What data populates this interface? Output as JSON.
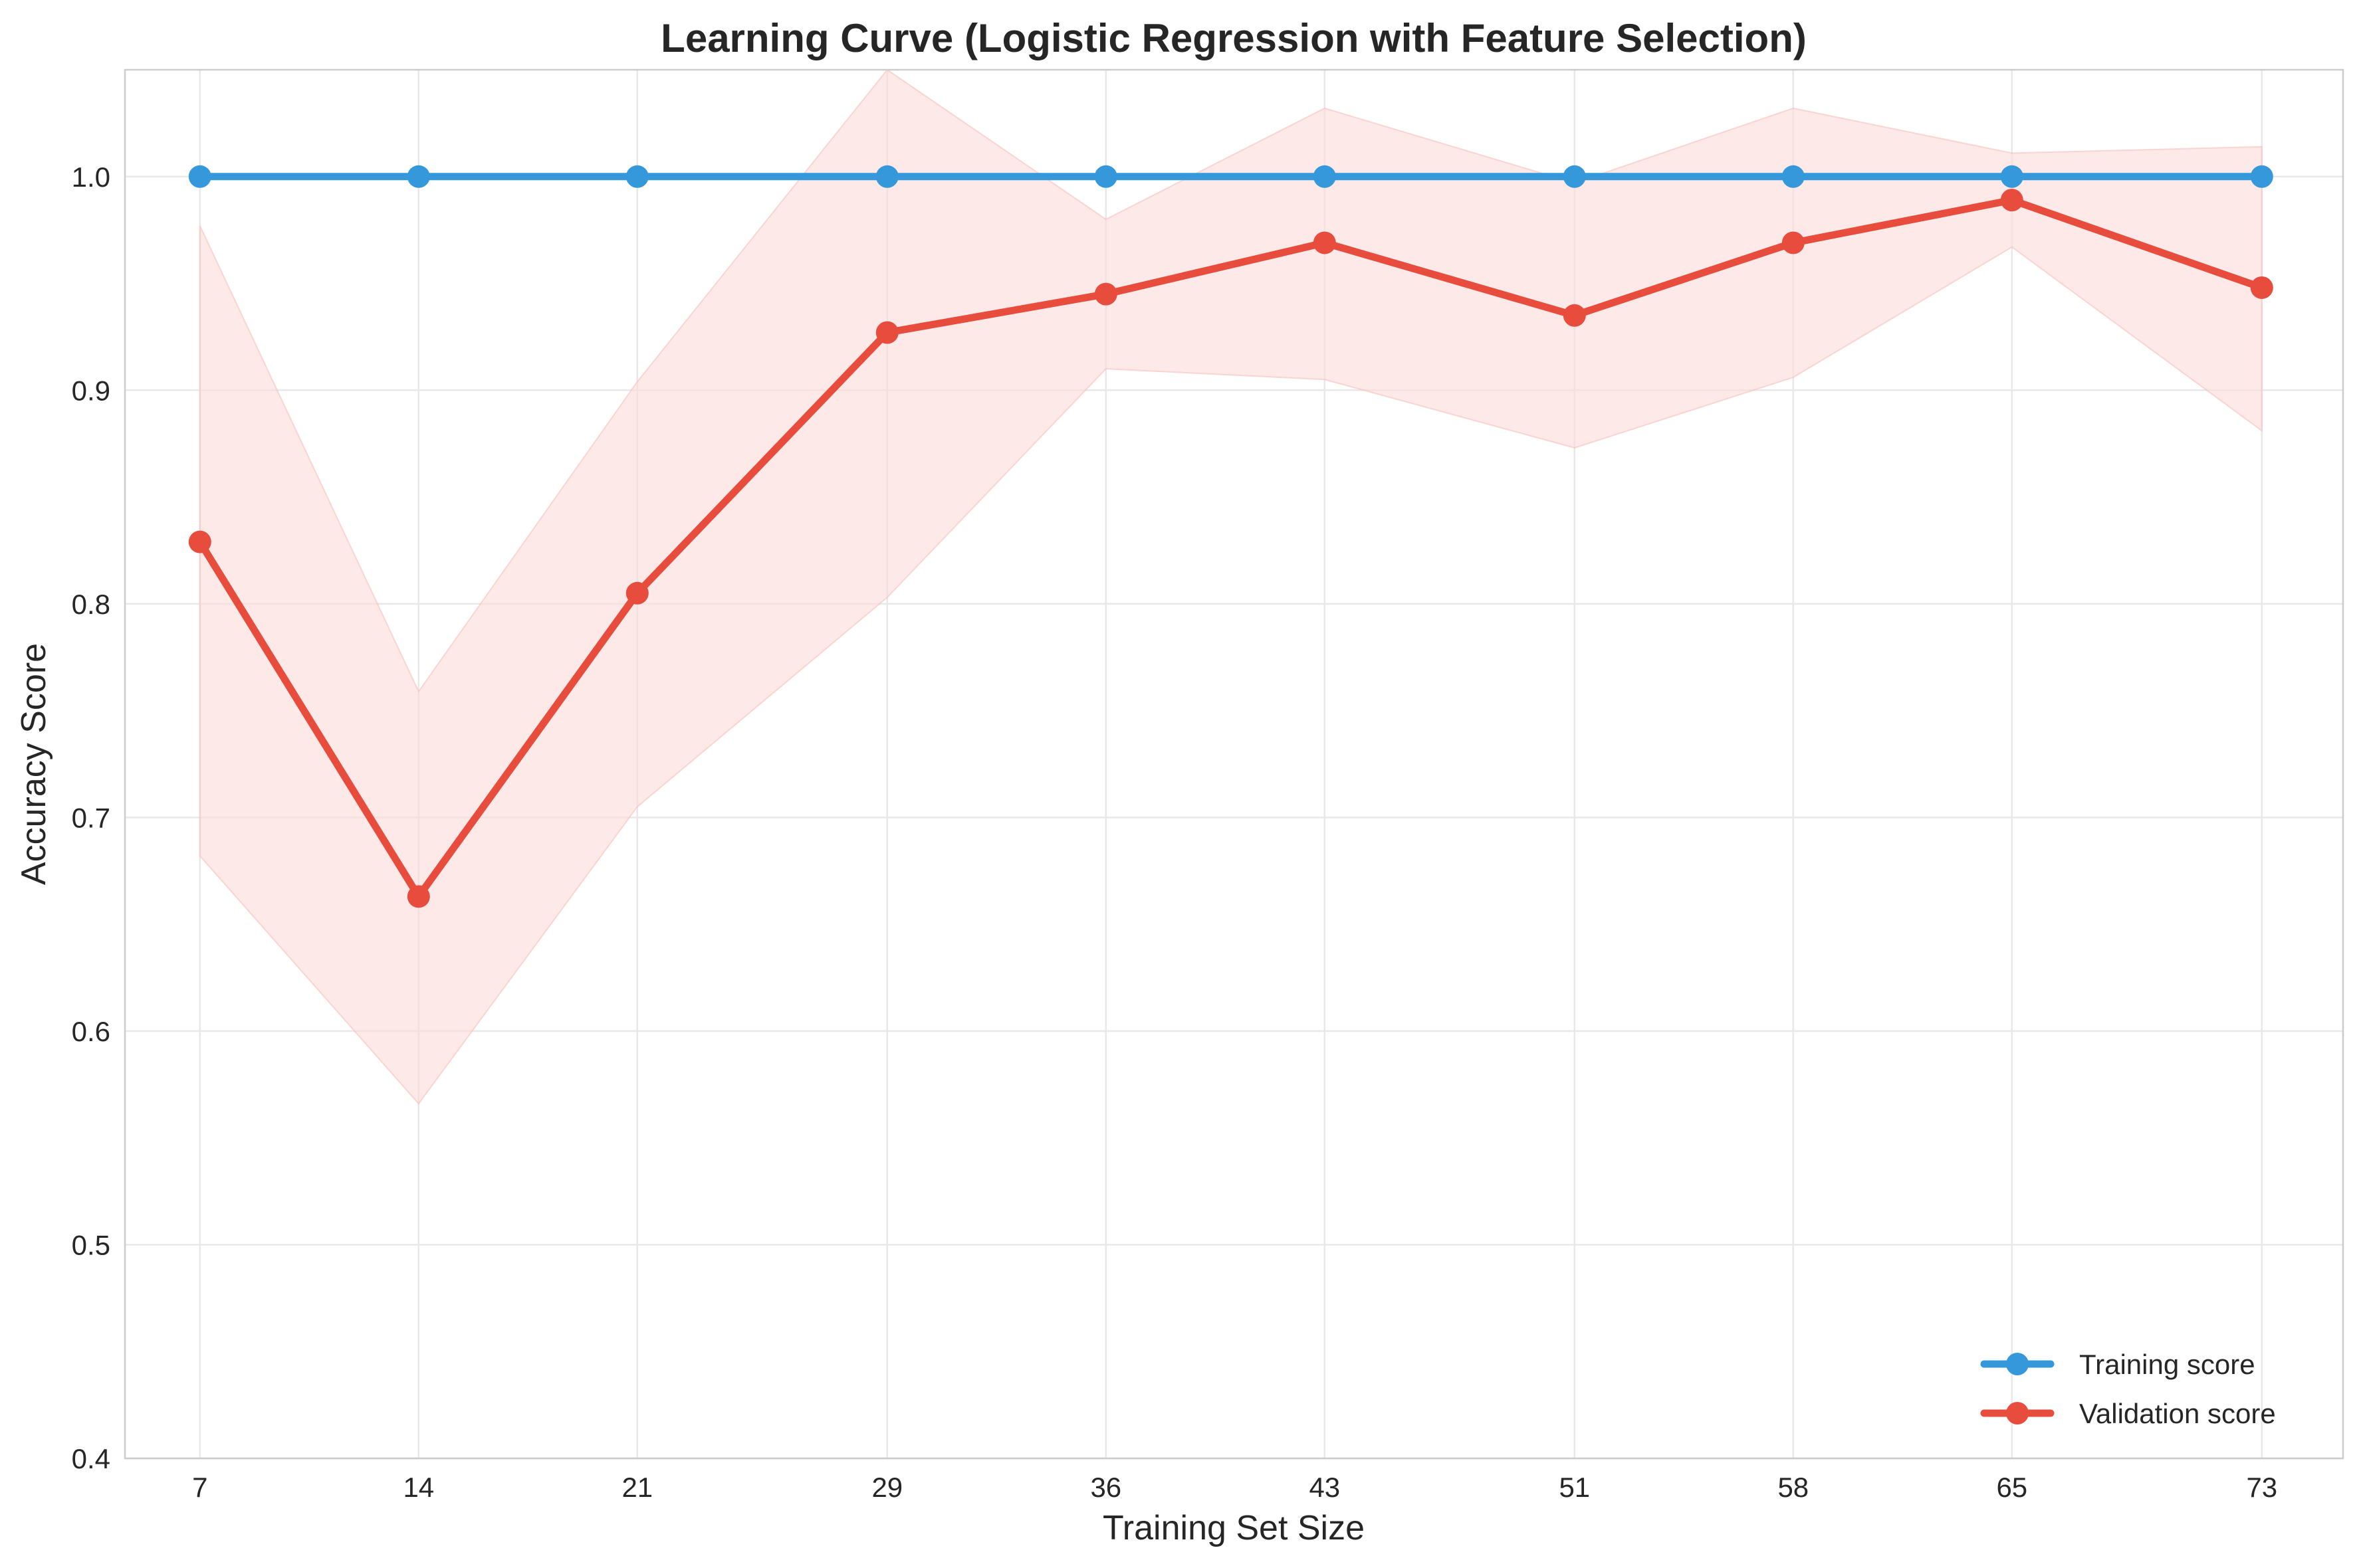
{
  "chart_data": {
    "type": "line",
    "title": "Learning Curve (Logistic Regression with Feature Selection)",
    "xlabel": "Training Set Size",
    "ylabel": "Accuracy Score",
    "x": [
      7,
      14,
      21,
      29,
      36,
      43,
      51,
      58,
      65,
      73
    ],
    "x_tick_labels": [
      "7",
      "14",
      "21",
      "29",
      "36",
      "43",
      "51",
      "58",
      "65",
      "73"
    ],
    "xlim": [
      4.6,
      75.6
    ],
    "ylim": [
      0.4,
      1.05
    ],
    "y_ticks": [
      0.4,
      0.5,
      0.6,
      0.7,
      0.8,
      0.9,
      1.0
    ],
    "y_tick_labels": [
      "0.4",
      "0.5",
      "0.6",
      "0.7",
      "0.8",
      "0.9",
      "1.0"
    ],
    "grid": true,
    "legend_position": "bottom-right",
    "series": [
      {
        "name": "Training score",
        "color": "#3498db",
        "marker": "circle",
        "values": [
          1.0,
          1.0,
          1.0,
          1.0,
          1.0,
          1.0,
          1.0,
          1.0,
          1.0,
          1.0
        ]
      },
      {
        "name": "Validation score",
        "color": "#e74c3c",
        "marker": "circle",
        "values": [
          0.829,
          0.663,
          0.805,
          0.927,
          0.945,
          0.969,
          0.935,
          0.969,
          0.989,
          0.948
        ],
        "band_upper": [
          0.977,
          0.759,
          0.904,
          1.05,
          0.98,
          1.032,
          0.997,
          1.032,
          1.011,
          1.014
        ],
        "band_lower": [
          0.682,
          0.566,
          0.705,
          0.803,
          0.91,
          0.905,
          0.873,
          0.906,
          0.967,
          0.881
        ],
        "band_color": "#fadbd8"
      }
    ]
  }
}
